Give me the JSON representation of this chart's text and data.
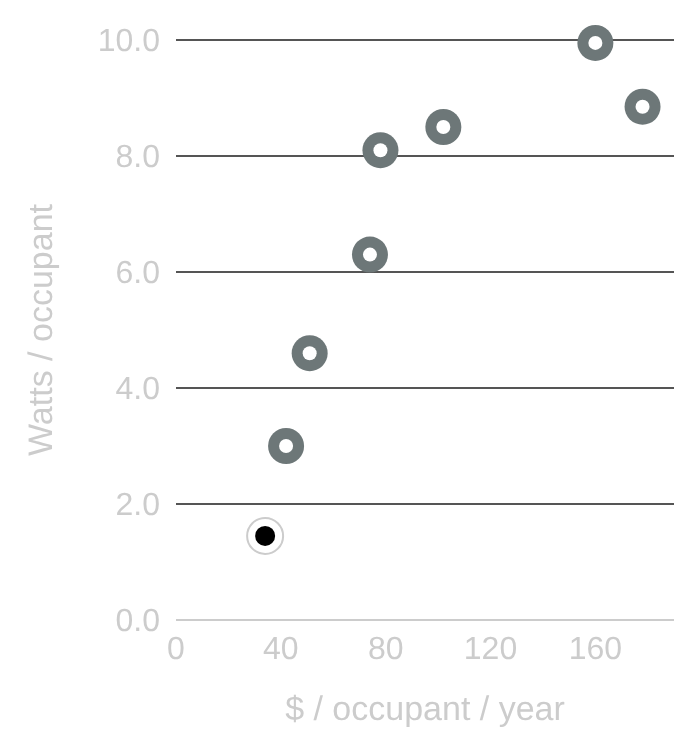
{
  "chart_data": {
    "type": "scatter",
    "xlabel": "$ / occupant / year",
    "ylabel": "Watts / occupant",
    "series": [
      {
        "color": "#6d7778",
        "x": [
          42,
          51,
          74,
          78,
          102,
          160,
          178
        ],
        "values": [
          3.0,
          4.6,
          6.3,
          8.1,
          8.5,
          9.95,
          8.85
        ]
      },
      {
        "color": "#000000",
        "x": [
          34
        ],
        "values": [
          1.45
        ]
      }
    ],
    "xlim": [
      0,
      190
    ],
    "xticks": [
      0,
      40,
      80,
      120,
      160
    ],
    "ylim": [
      0,
      10
    ],
    "yticks": [
      {
        "value": 0,
        "label": "0.0"
      },
      {
        "value": 2,
        "label": "2.0"
      },
      {
        "value": 4,
        "label": "4.0"
      },
      {
        "value": 6,
        "label": "6.0"
      },
      {
        "value": 8,
        "label": "8.0"
      },
      {
        "value": 10,
        "label": "10.0"
      }
    ],
    "grid": "y",
    "marker": "circle"
  }
}
